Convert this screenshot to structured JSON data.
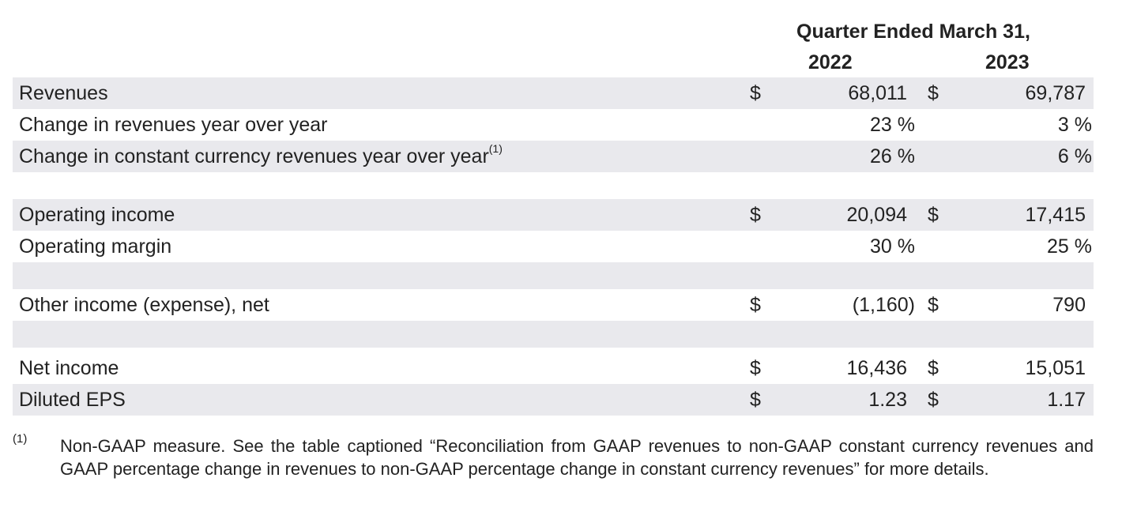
{
  "header": {
    "period_title": "Quarter Ended March 31,",
    "year_1": "2022",
    "year_2": "2023"
  },
  "rows": [
    {
      "label": "Revenues",
      "currency_1": "$",
      "value_1": "68,011",
      "currency_2": "$",
      "value_2": "69,787"
    },
    {
      "label": "Change in revenues year over year",
      "value_1": "23 %",
      "value_2": "3 %"
    },
    {
      "label": "Change in constant currency revenues year over year",
      "label_sup": "(1)",
      "value_1": "26 %",
      "value_2": "6 %"
    },
    {
      "label": "Operating income",
      "currency_1": "$",
      "value_1": "20,094",
      "currency_2": "$",
      "value_2": "17,415"
    },
    {
      "label": "Operating margin",
      "value_1": "30 %",
      "value_2": "25 %"
    },
    {
      "label": "Other income (expense), net",
      "currency_1": "$",
      "value_1": "(1,160)",
      "currency_2": "$",
      "value_2": "790"
    },
    {
      "label": "Net income",
      "currency_1": "$",
      "value_1": "16,436",
      "currency_2": "$",
      "value_2": "15,051"
    },
    {
      "label": "Diluted EPS",
      "currency_1": "$",
      "value_1": "1.23",
      "currency_2": "$",
      "value_2": "1.17"
    }
  ],
  "footnote": {
    "marker": "(1)",
    "text": "Non-GAAP measure. See the table captioned “Reconciliation from GAAP revenues to non-GAAP constant currency revenues and GAAP percentage change in revenues to non-GAAP percentage change in constant currency revenues” for more details."
  }
}
